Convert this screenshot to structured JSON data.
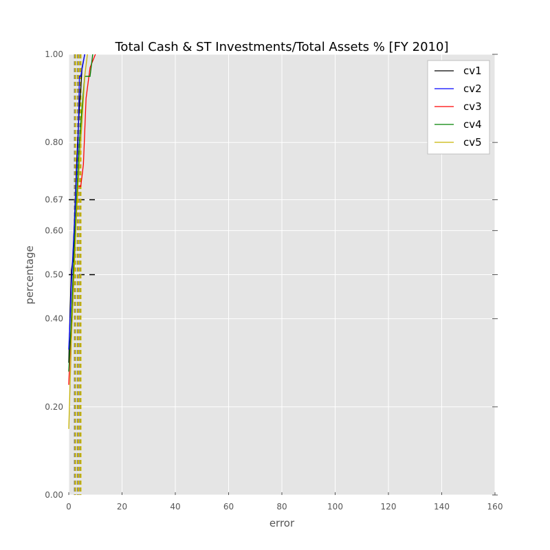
{
  "chart_data": {
    "type": "line",
    "title": "Total Cash & ST Investments/Total Assets % [FY 2010]",
    "xlabel": "error",
    "ylabel": "percentage",
    "xlim": [
      0,
      160
    ],
    "ylim": [
      0,
      1
    ],
    "grid": true,
    "legend_position": "top-right",
    "x_ticks": [
      0,
      20,
      40,
      60,
      80,
      100,
      120,
      140,
      160
    ],
    "x_tick_labels": [
      "0",
      "20",
      "40",
      "60",
      "80",
      "100",
      "120",
      "140",
      "160"
    ],
    "y_ticks": [
      0.0,
      0.2,
      0.4,
      0.5,
      0.6,
      0.67,
      0.8,
      1.0
    ],
    "y_tick_labels": [
      "0.00",
      "0.20",
      "0.40",
      "0.50",
      "0.60",
      "0.67",
      "0.80",
      "1.00"
    ],
    "series": [
      {
        "name": "cv1",
        "color": "#000000",
        "x": [
          0,
          0.5,
          1,
          1.5,
          2,
          2.5,
          3,
          3.5,
          4,
          4.5,
          5,
          6
        ],
        "y": [
          0.3,
          0.42,
          0.51,
          0.53,
          0.6,
          0.68,
          0.76,
          0.82,
          0.88,
          0.92,
          0.97,
          1.0
        ]
      },
      {
        "name": "cv2",
        "color": "#0000ff",
        "x": [
          0,
          0.5,
          1,
          1.5,
          2,
          2.5,
          3,
          3.5,
          4,
          4.5,
          6
        ],
        "y": [
          0.33,
          0.4,
          0.48,
          0.54,
          0.6,
          0.67,
          0.74,
          0.8,
          0.95,
          0.95,
          1.0
        ]
      },
      {
        "name": "cv3",
        "color": "#ff0000",
        "x": [
          0,
          1,
          2,
          3,
          3.5,
          4.5,
          5.5,
          6.5,
          8,
          10
        ],
        "y": [
          0.25,
          0.4,
          0.55,
          0.65,
          0.7,
          0.7,
          0.75,
          0.9,
          0.97,
          1.0
        ]
      },
      {
        "name": "cv4",
        "color": "#008000",
        "x": [
          0,
          1,
          2,
          3,
          4,
          5,
          6,
          8,
          9
        ],
        "y": [
          0.28,
          0.4,
          0.55,
          0.68,
          0.8,
          0.88,
          0.95,
          0.95,
          1.0
        ]
      },
      {
        "name": "cv5",
        "color": "#c8b400",
        "x": [
          0,
          1,
          2,
          3,
          4,
          5,
          6,
          7
        ],
        "y": [
          0.15,
          0.35,
          0.5,
          0.65,
          0.75,
          0.85,
          0.95,
          1.0
        ]
      }
    ],
    "reference_lines": [
      {
        "orientation": "horizontal",
        "y": 0.5,
        "x_range": [
          0,
          10
        ],
        "color": "#000000",
        "style": "dashed"
      },
      {
        "orientation": "horizontal",
        "y": 0.67,
        "x_range": [
          0,
          10
        ],
        "color": "#000000",
        "style": "dashed"
      },
      {
        "orientation": "vertical",
        "x": 2.2,
        "color": "#808080",
        "style": "dashed"
      },
      {
        "orientation": "vertical",
        "x": 2.5,
        "color": "#c8b400",
        "style": "dashed"
      },
      {
        "orientation": "vertical",
        "x": 3.3,
        "color": "#808080",
        "style": "dashed"
      },
      {
        "orientation": "vertical",
        "x": 3.6,
        "color": "#c8b400",
        "style": "dashed"
      },
      {
        "orientation": "vertical",
        "x": 4.2,
        "color": "#808080",
        "style": "dashed"
      },
      {
        "orientation": "vertical",
        "x": 4.5,
        "color": "#c8b400",
        "style": "dashed"
      }
    ]
  }
}
